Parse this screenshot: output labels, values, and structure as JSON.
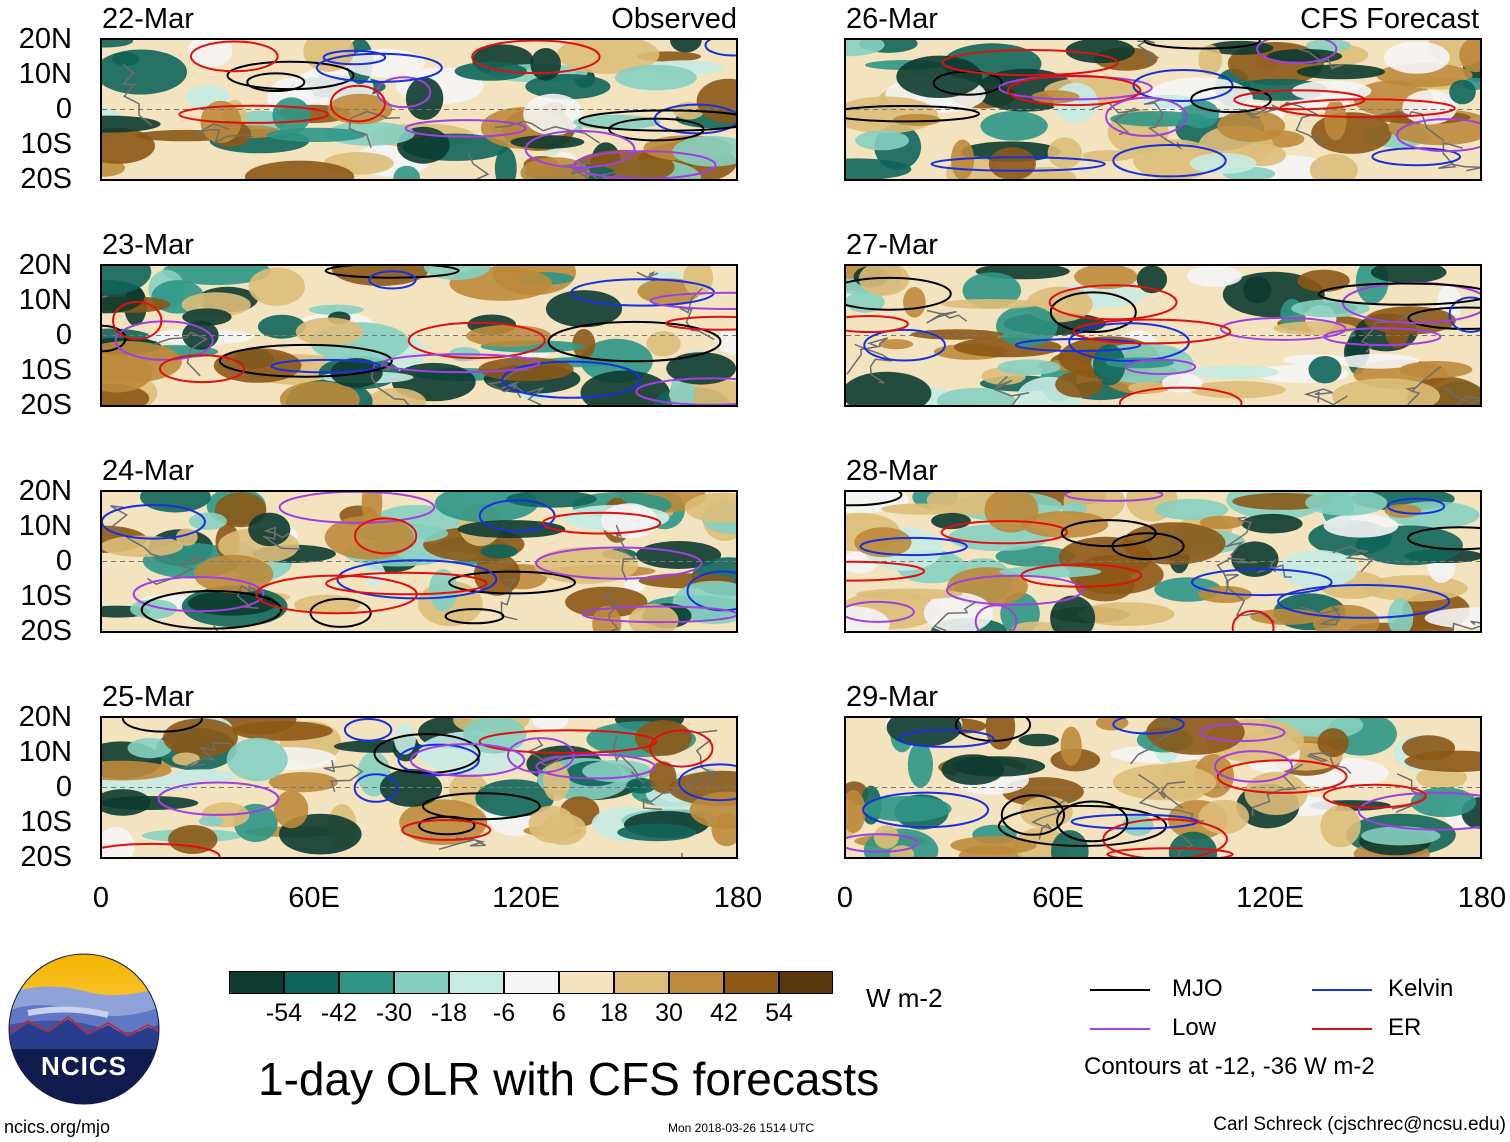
{
  "panels": {
    "left": {
      "dates": [
        "22-Mar",
        "23-Mar",
        "24-Mar",
        "25-Mar"
      ],
      "header": "Observed"
    },
    "right": {
      "dates": [
        "26-Mar",
        "27-Mar",
        "28-Mar",
        "29-Mar"
      ],
      "header": "CFS Forecast"
    }
  },
  "lat_labels": [
    "20N",
    "10N",
    "0",
    "10S",
    "20S"
  ],
  "lon_labels": [
    "0",
    "60E",
    "120E",
    "180"
  ],
  "colorbar": {
    "colors": [
      "#0d3b30",
      "#10655a",
      "#2f9686",
      "#86cfc0",
      "#c6ebe3",
      "#f4f4f4",
      "#f3e4bf",
      "#ddbd79",
      "#bd8a3b",
      "#8b5816",
      "#583710"
    ],
    "labels": [
      "-54",
      "-42",
      "-30",
      "-18",
      "-6",
      "6",
      "18",
      "30",
      "42",
      "54"
    ],
    "units": "W m-2"
  },
  "legend": {
    "items": [
      {
        "label": "MJO",
        "color": "#000000"
      },
      {
        "label": "Kelvin",
        "color": "#1730e0"
      },
      {
        "label": "Low",
        "color": "#a040e0"
      },
      {
        "label": "ER",
        "color": "#e01010"
      }
    ],
    "note": "Contours at -12, -36 W m-2"
  },
  "title": "1-day OLR with CFS forecasts",
  "footer": {
    "left": "ncics.org/mjo",
    "center": "Mon 2018-03-26 1514 UTC",
    "right": "Carl Schreck (cjschrec@ncsu.edu)"
  },
  "logo": {
    "text": "NCICS"
  }
}
